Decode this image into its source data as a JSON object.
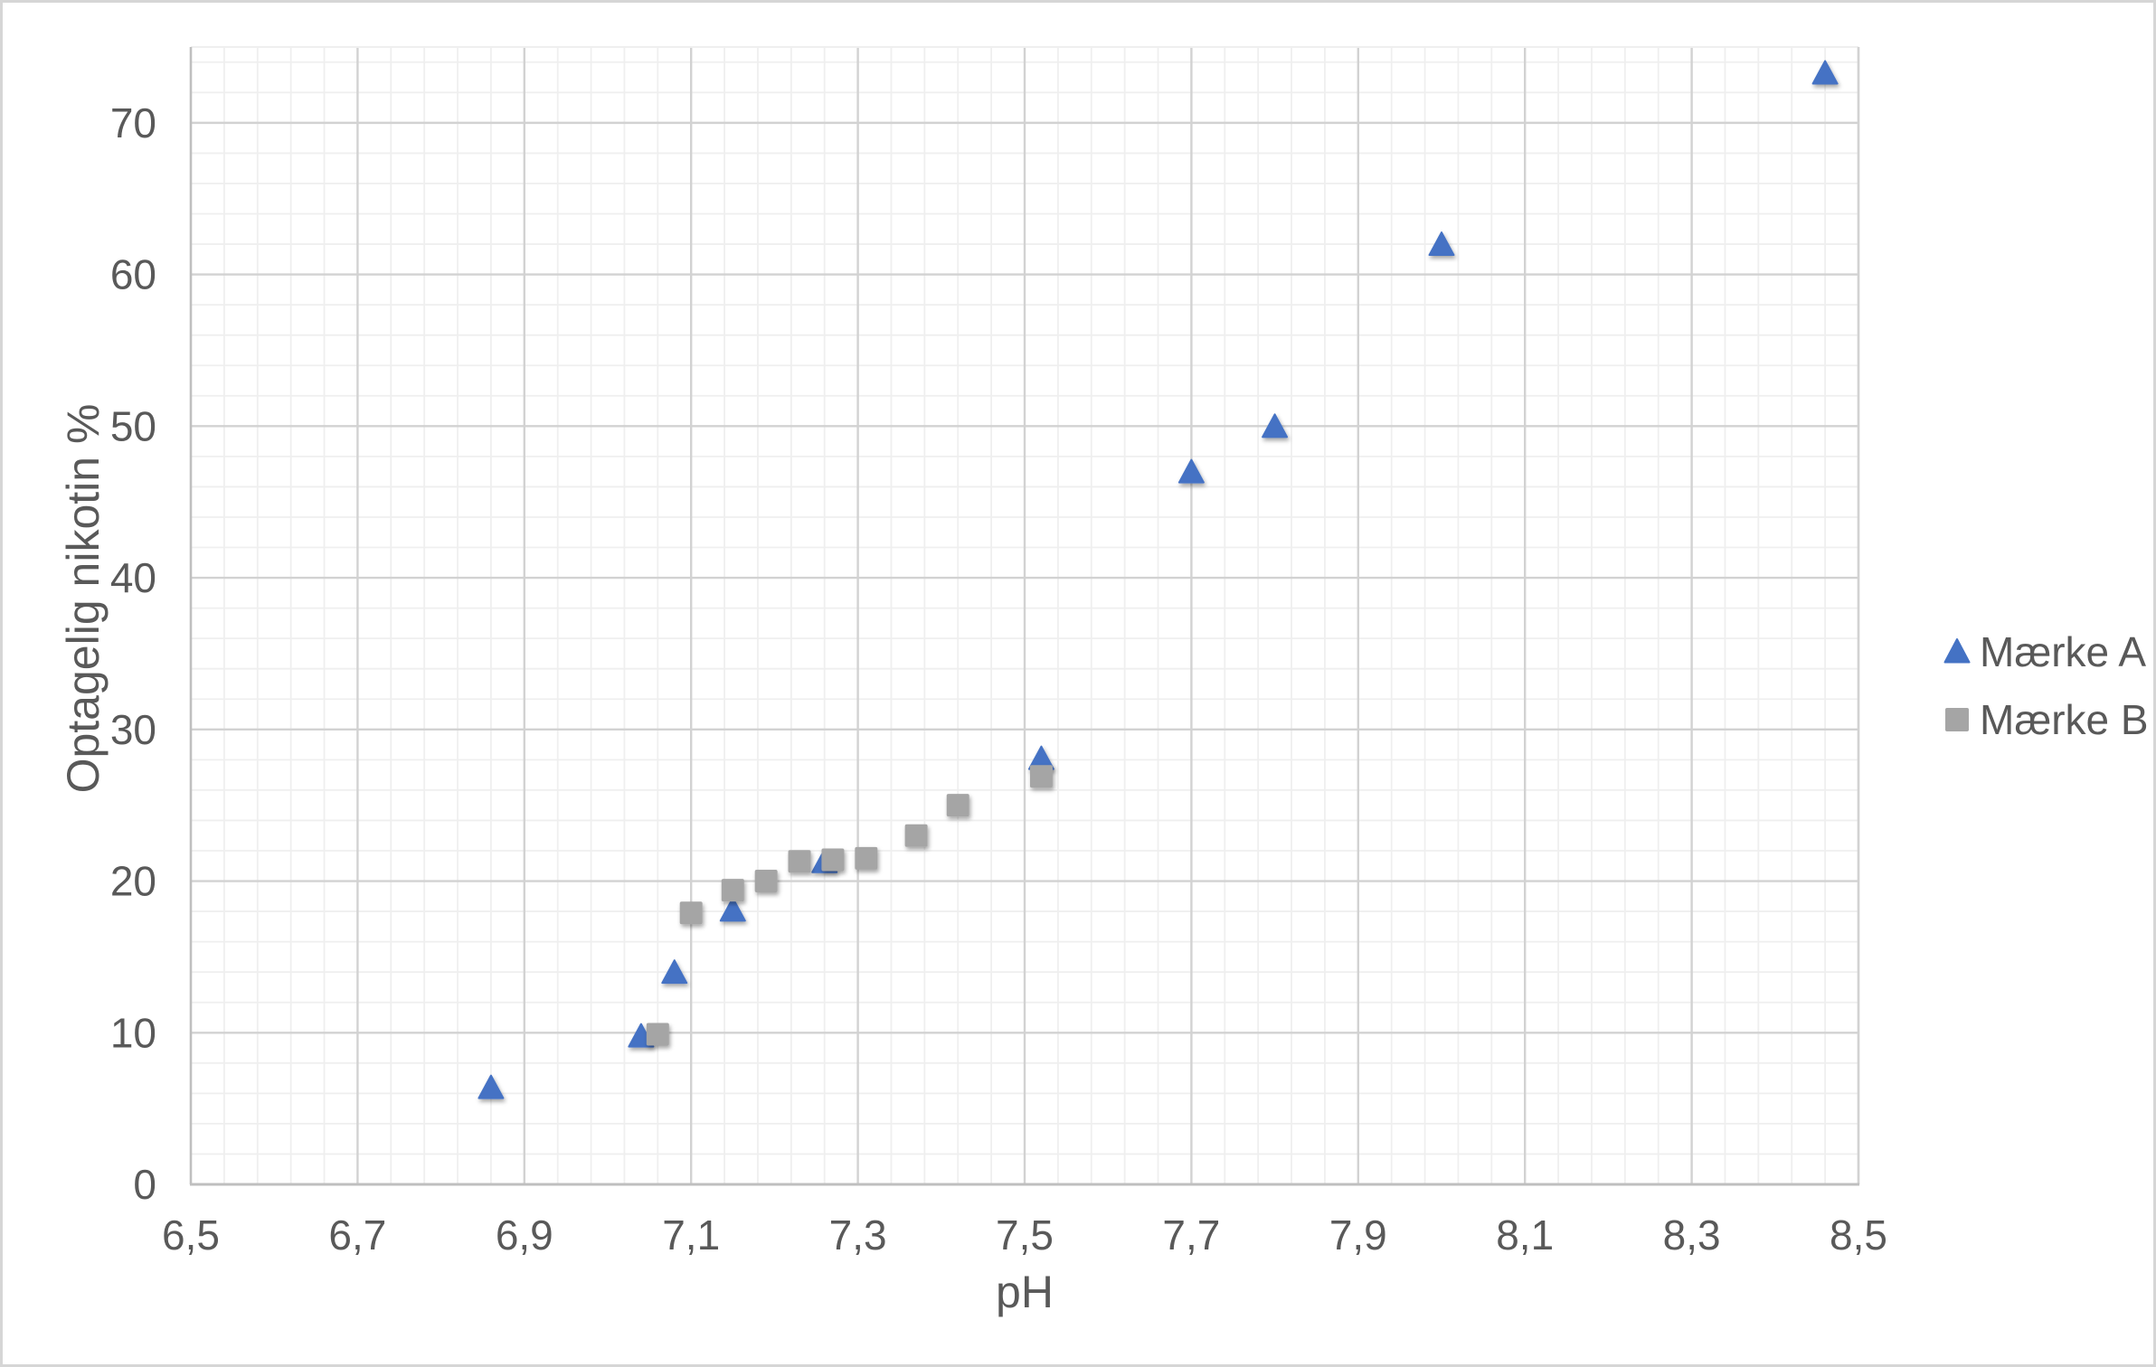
{
  "chart_data": {
    "type": "scatter",
    "title": "",
    "xlabel": "pH",
    "ylabel": "Optagelig nikotin %",
    "xlim": [
      6.5,
      8.5
    ],
    "ylim": [
      0,
      75
    ],
    "x_major_step": 0.2,
    "x_minor_step": 0.04,
    "y_major_step": 10,
    "y_minor_step": 2,
    "x_tick_labels": [
      "6,5",
      "6,7",
      "6,9",
      "7,1",
      "7,3",
      "7,5",
      "7,7",
      "7,9",
      "8,1",
      "8,3",
      "8,5"
    ],
    "y_tick_labels": [
      "0",
      "10",
      "20",
      "30",
      "40",
      "50",
      "60",
      "70"
    ],
    "grid": true,
    "legend_position": "right",
    "colors": {
      "series_a": "#4472c4",
      "series_b": "#a5a5a5",
      "text": "#595959",
      "major_gridline": "#d2d2d2",
      "minor_gridline": "#efefef",
      "axis_line": "#bfbfbf"
    },
    "series": [
      {
        "name": "Mærke A",
        "marker": "triangle",
        "color": "#4472c4",
        "points": [
          [
            6.86,
            6.4
          ],
          [
            7.04,
            9.8
          ],
          [
            7.08,
            14.0
          ],
          [
            7.15,
            18.1
          ],
          [
            7.26,
            21.3
          ],
          [
            7.52,
            28.1
          ],
          [
            7.7,
            47.0
          ],
          [
            7.8,
            50.0
          ],
          [
            8.0,
            62.0
          ],
          [
            8.46,
            73.3
          ]
        ]
      },
      {
        "name": "Mærke B",
        "marker": "square",
        "color": "#a5a5a5",
        "points": [
          [
            7.06,
            9.9
          ],
          [
            7.1,
            17.9
          ],
          [
            7.15,
            19.4
          ],
          [
            7.19,
            20.0
          ],
          [
            7.23,
            21.3
          ],
          [
            7.27,
            21.4
          ],
          [
            7.31,
            21.5
          ],
          [
            7.37,
            23.0
          ],
          [
            7.42,
            25.0
          ],
          [
            7.52,
            26.9
          ]
        ]
      }
    ]
  }
}
